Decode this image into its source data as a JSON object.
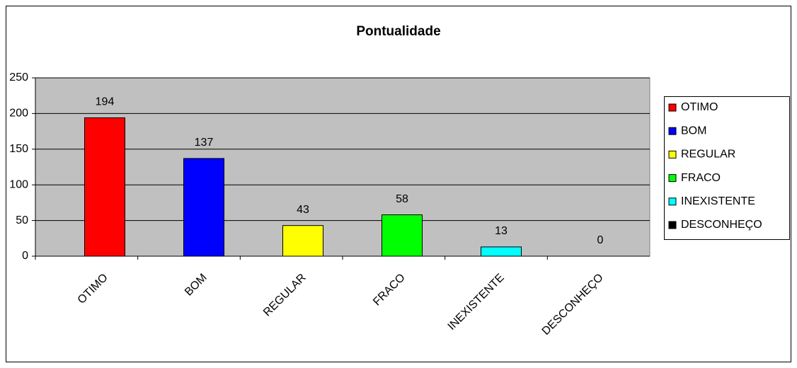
{
  "chart_data": {
    "type": "bar",
    "title": "Pontualidade",
    "categories": [
      "OTIMO",
      "BOM",
      "REGULAR",
      "FRACO",
      "INEXISTENTE",
      "DESCONHEÇO"
    ],
    "values": [
      194,
      137,
      43,
      58,
      13,
      0
    ],
    "colors": [
      "#ff0000",
      "#0000ff",
      "#ffff00",
      "#00ff00",
      "#00ffff",
      "#000000"
    ],
    "ylim": [
      0,
      250
    ],
    "yticks": [
      0,
      50,
      100,
      150,
      200,
      250
    ],
    "grid": true,
    "legend": "right"
  }
}
